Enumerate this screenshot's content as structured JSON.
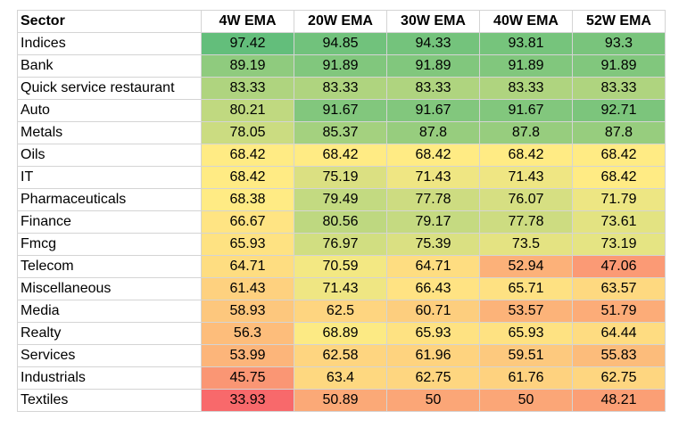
{
  "chart_data": {
    "type": "table",
    "columns": [
      "Sector",
      "4W EMA",
      "20W EMA",
      "30W EMA",
      "40W EMA",
      "52W EMA"
    ],
    "rows": [
      {
        "sector": "Indices",
        "values": [
          "97.42",
          "94.85",
          "94.33",
          "93.81",
          "93.3"
        ]
      },
      {
        "sector": "Bank",
        "values": [
          "89.19",
          "91.89",
          "91.89",
          "91.89",
          "91.89"
        ]
      },
      {
        "sector": "Quick service restaurant",
        "values": [
          "83.33",
          "83.33",
          "83.33",
          "83.33",
          "83.33"
        ]
      },
      {
        "sector": "Auto",
        "values": [
          "80.21",
          "91.67",
          "91.67",
          "91.67",
          "92.71"
        ]
      },
      {
        "sector": "Metals",
        "values": [
          "78.05",
          "85.37",
          "87.8",
          "87.8",
          "87.8"
        ]
      },
      {
        "sector": "Oils",
        "values": [
          "68.42",
          "68.42",
          "68.42",
          "68.42",
          "68.42"
        ]
      },
      {
        "sector": "IT",
        "values": [
          "68.42",
          "75.19",
          "71.43",
          "71.43",
          "68.42"
        ]
      },
      {
        "sector": "Pharmaceuticals",
        "values": [
          "68.38",
          "79.49",
          "77.78",
          "76.07",
          "71.79"
        ]
      },
      {
        "sector": "Finance",
        "values": [
          "66.67",
          "80.56",
          "79.17",
          "77.78",
          "73.61"
        ]
      },
      {
        "sector": "Fmcg",
        "values": [
          "65.93",
          "76.97",
          "75.39",
          "73.5",
          "73.19"
        ]
      },
      {
        "sector": "Telecom",
        "values": [
          "64.71",
          "70.59",
          "64.71",
          "52.94",
          "47.06"
        ]
      },
      {
        "sector": "Miscellaneous",
        "values": [
          "61.43",
          "71.43",
          "66.43",
          "65.71",
          "63.57"
        ]
      },
      {
        "sector": "Media",
        "values": [
          "58.93",
          "62.5",
          "60.71",
          "53.57",
          "51.79"
        ]
      },
      {
        "sector": "Realty",
        "values": [
          "56.3",
          "68.89",
          "65.93",
          "65.93",
          "64.44"
        ]
      },
      {
        "sector": "Services",
        "values": [
          "53.99",
          "62.58",
          "61.96",
          "59.51",
          "55.83"
        ]
      },
      {
        "sector": "Industrials",
        "values": [
          "45.75",
          "63.4",
          "62.75",
          "61.76",
          "62.75"
        ]
      },
      {
        "sector": "Textiles",
        "values": [
          "33.93",
          "50.89",
          "50",
          "50",
          "48.21"
        ]
      }
    ],
    "color_scale": {
      "min_value": 33.93,
      "mid_value": 68.42,
      "max_value": 97.42,
      "min_color": "#f8696b",
      "mid_color": "#ffeb84",
      "max_color": "#63be7b"
    }
  }
}
